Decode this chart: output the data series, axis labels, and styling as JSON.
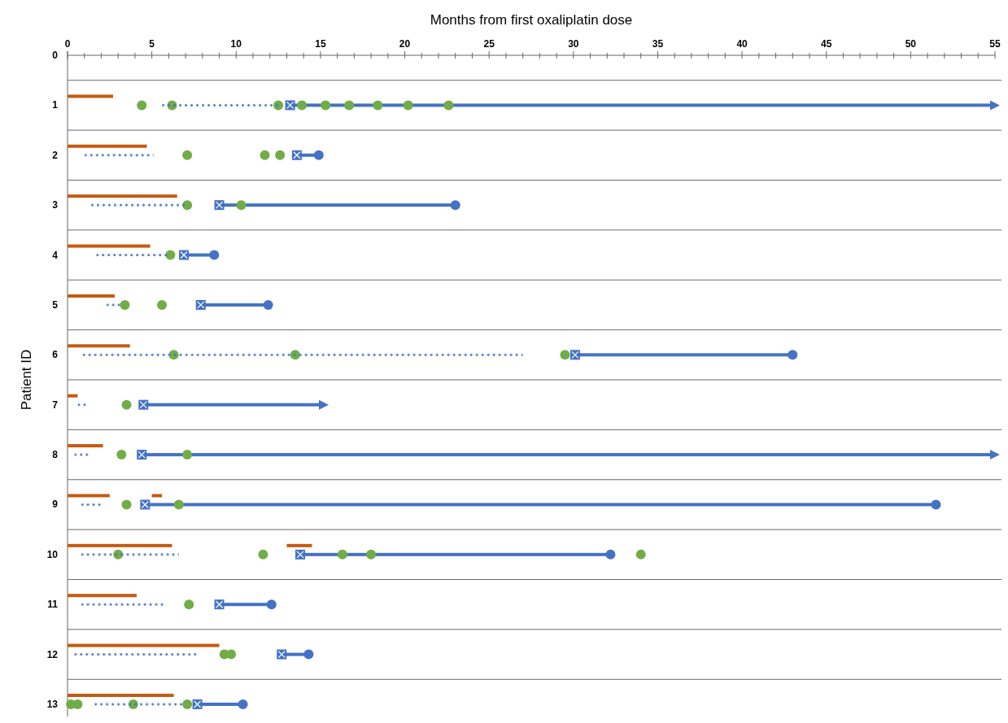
{
  "chart_data": {
    "type": "bar",
    "orientation": "horizontal",
    "xlabel": "Months from first oxaliplatin dose",
    "ylabel": "Patient ID",
    "categories": [
      "0",
      "1",
      "2",
      "3",
      "4",
      "5",
      "6",
      "7",
      "8",
      "9",
      "10",
      "11",
      "12",
      "13"
    ],
    "xlim": [
      0,
      55
    ],
    "xticks": [
      0,
      {
        "value": 1,
        "label": null
      },
      {
        "value": 2,
        "label": null
      },
      {
        "value": 3,
        "label": null
      },
      {
        "value": 4,
        "label": null
      },
      5,
      {
        "value": 6,
        "label": null
      },
      {
        "value": 7,
        "label": null
      },
      {
        "value": 8,
        "label": null
      },
      {
        "value": 9,
        "label": null
      },
      10,
      {
        "value": 11,
        "label": null
      },
      {
        "value": 12,
        "label": null
      },
      {
        "value": 13,
        "label": null
      },
      {
        "value": 14,
        "label": null
      },
      15,
      {
        "value": 16,
        "label": null
      },
      {
        "value": 17,
        "label": null
      },
      {
        "value": 18,
        "label": null
      },
      {
        "value": 19,
        "label": null
      },
      20,
      {
        "value": 21,
        "label": null
      },
      {
        "value": 22,
        "label": null
      },
      {
        "value": 23,
        "label": null
      },
      {
        "value": 24,
        "label": null
      },
      25,
      {
        "value": 26,
        "label": null
      },
      {
        "value": 27,
        "label": null
      },
      {
        "value": 28,
        "label": null
      },
      {
        "value": 29,
        "label": null
      },
      30,
      {
        "value": 31,
        "label": null
      },
      {
        "value": 32,
        "label": null
      },
      {
        "value": 33,
        "label": null
      },
      {
        "value": 34,
        "label": null
      },
      35,
      {
        "value": 36,
        "label": null
      },
      {
        "value": 37,
        "label": null
      },
      {
        "value": 38,
        "label": null
      },
      {
        "value": 39,
        "label": null
      },
      40,
      {
        "value": 41,
        "label": null
      },
      {
        "value": 42,
        "label": null
      },
      {
        "value": 43,
        "label": null
      },
      {
        "value": 44,
        "label": null
      },
      45,
      {
        "value": 46,
        "label": null
      },
      {
        "value": 47,
        "label": null
      },
      {
        "value": 48,
        "label": null
      },
      {
        "value": 49,
        "label": null
      },
      50,
      {
        "value": 51,
        "label": null
      },
      {
        "value": 52,
        "label": null
      },
      {
        "value": 53,
        "label": null
      },
      {
        "value": 54,
        "label": null
      },
      55
    ],
    "grid": "y",
    "series": [
      {
        "color": "#c55a11",
        "line_style": "solid",
        "base": [
          null,
          0,
          0,
          0,
          0,
          0,
          0,
          0,
          0,
          0,
          0,
          0,
          0,
          0
        ],
        "values": [
          null,
          2.7,
          4.7,
          6.5,
          4.9,
          2.8,
          3.7,
          0.6,
          2.1,
          2.5,
          6.2,
          4.1,
          9.0,
          6.3
        ]
      },
      {
        "color": "#c55a11",
        "line_style": "solid",
        "base": [
          null,
          null,
          null,
          null,
          null,
          null,
          null,
          null,
          null,
          5.0,
          13.0,
          null,
          null,
          null
        ],
        "values": [
          null,
          null,
          null,
          null,
          null,
          null,
          null,
          null,
          null,
          0.6,
          1.5,
          null,
          null,
          null
        ]
      },
      {
        "color": "#4472c4",
        "line_style": "dotted",
        "base": [
          null,
          5.6,
          1.0,
          1.4,
          1.7,
          2.3,
          0.9,
          0.6,
          0.4,
          0.8,
          0.8,
          0.8,
          0.4,
          1.6
        ],
        "values": [
          null,
          6.9,
          4.1,
          5.6,
          4.3,
          1.0,
          26.1,
          0.5,
          0.9,
          1.3,
          5.8,
          5.0,
          7.3,
          5.4
        ]
      },
      {
        "color": "#4472c4",
        "line_style": "solid",
        "base": [
          null,
          13.2,
          13.6,
          9.0,
          6.9,
          7.9,
          30.1,
          4.5,
          4.4,
          4.6,
          13.8,
          9.0,
          12.7,
          7.7
        ],
        "values": [
          null,
          41.7,
          1.3,
          14.0,
          1.8,
          4.0,
          12.9,
          10.6,
          50.5,
          46.9,
          18.4,
          3.1,
          1.6,
          2.7
        ]
      },
      {
        "type": "scatter",
        "marker": "circle",
        "color": "#4472c4",
        "values": [
          null,
          null,
          14.9,
          23.0,
          8.7,
          11.9,
          43.0,
          null,
          null,
          51.5,
          32.2,
          12.1,
          14.3,
          10.4
        ]
      },
      {
        "type": "scatter",
        "marker": "triangle",
        "color": "#4472c4",
        "values": [
          null,
          54.9,
          null,
          null,
          null,
          null,
          null,
          15.1,
          54.9,
          null,
          null,
          null,
          null,
          null
        ]
      },
      {
        "type": "scatter",
        "marker": "square",
        "color": "#4472c4",
        "values": [
          null,
          13.2,
          13.6,
          9.0,
          6.9,
          7.9,
          30.1,
          4.5,
          4.4,
          4.6,
          13.8,
          9.0,
          12.7,
          7.7
        ]
      },
      {
        "type": "scatter",
        "marker": "circle",
        "color": "#70ad47",
        "values": [
          null,
          4.4,
          7.1,
          7.1,
          6.1,
          3.4,
          6.3,
          3.5,
          3.2,
          3.5,
          3.0,
          7.2,
          9.3,
          0.2
        ]
      },
      {
        "type": "scatter",
        "marker": "circle",
        "color": "#70ad47",
        "values": [
          null,
          6.2,
          11.7,
          10.3,
          null,
          5.6,
          13.5,
          null,
          7.1,
          6.6,
          11.6,
          null,
          9.7,
          0.6
        ]
      },
      {
        "type": "scatter",
        "marker": "circle",
        "color": "#70ad47",
        "values": [
          null,
          12.5,
          12.6,
          null,
          null,
          null,
          29.5,
          null,
          null,
          null,
          16.3,
          null,
          null,
          3.9
        ]
      },
      {
        "type": "scatter",
        "marker": "circle",
        "color": "#70ad47",
        "values": [
          null,
          13.9,
          null,
          null,
          null,
          null,
          null,
          null,
          null,
          null,
          18.0,
          null,
          null,
          7.1
        ]
      },
      {
        "type": "scatter",
        "marker": "circle",
        "color": "#70ad47",
        "values": [
          null,
          15.3,
          null,
          null,
          null,
          null,
          null,
          null,
          null,
          null,
          34.0,
          null,
          null,
          null
        ]
      },
      {
        "type": "scatter",
        "marker": "circle",
        "color": "#70ad47",
        "values": [
          null,
          16.7,
          null,
          null,
          null,
          null,
          null,
          null,
          null,
          null,
          null,
          null,
          null,
          null
        ]
      },
      {
        "type": "scatter",
        "marker": "circle",
        "color": "#70ad47",
        "values": [
          null,
          18.4,
          null,
          null,
          null,
          null,
          null,
          null,
          null,
          null,
          null,
          null,
          null,
          null
        ]
      },
      {
        "type": "scatter",
        "marker": "circle",
        "color": "#70ad47",
        "values": [
          null,
          20.2,
          null,
          null,
          null,
          null,
          null,
          null,
          null,
          null,
          null,
          null,
          null,
          null
        ]
      },
      {
        "type": "scatter",
        "marker": "circle",
        "color": "#70ad47",
        "values": [
          null,
          22.6,
          null,
          null,
          null,
          null,
          null,
          null,
          null,
          null,
          null,
          null,
          null,
          null
        ]
      }
    ]
  }
}
